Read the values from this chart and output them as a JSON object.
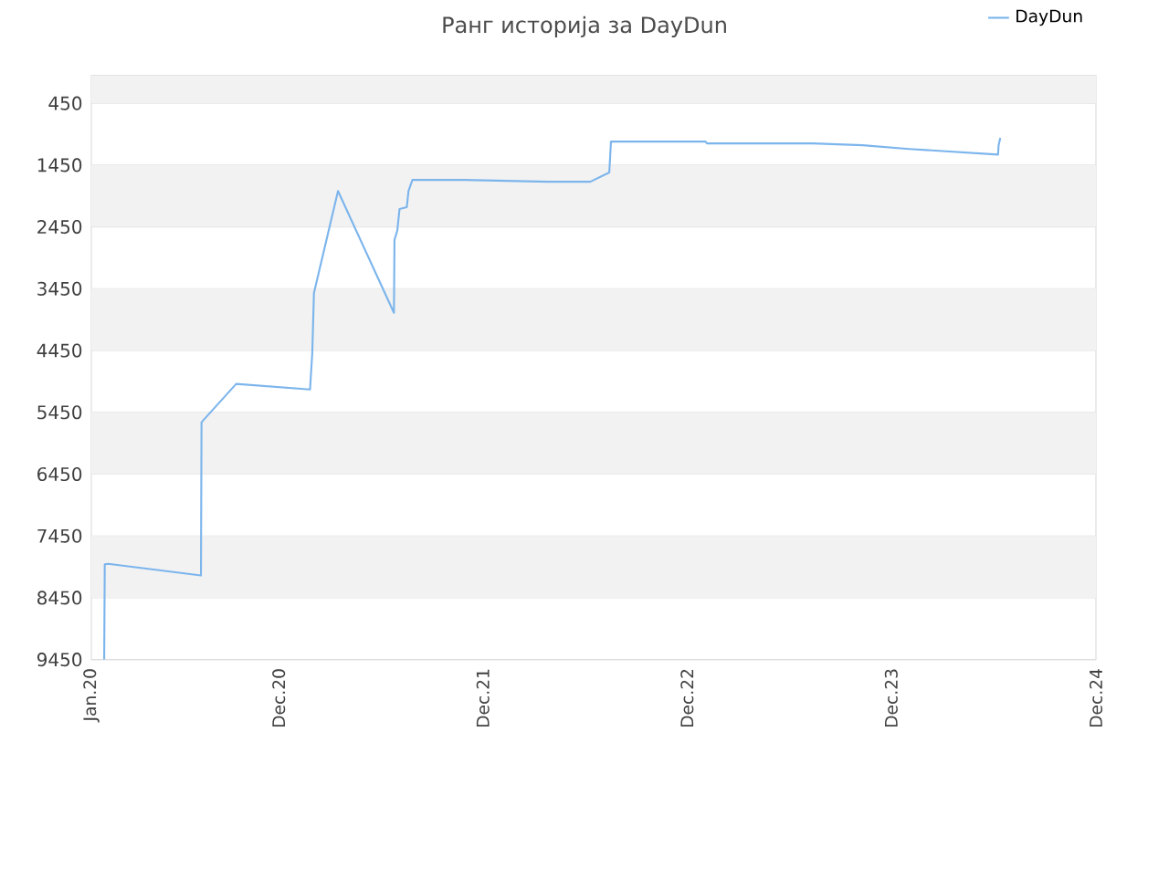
{
  "chart_data": {
    "type": "line",
    "title": "Ранг историја за DayDun",
    "x": [
      "2020-01-24",
      "2020-01-25",
      "2020-01-31",
      "2020-07-15",
      "2020-07-16",
      "2020-09-16",
      "2021-01-26",
      "2021-01-30",
      "2021-02-02",
      "2021-03-17",
      "2021-06-25",
      "2021-06-26",
      "2021-07-01",
      "2021-07-05",
      "2021-07-18",
      "2021-07-21",
      "2021-07-28",
      "2021-10-29",
      "2022-03-27",
      "2022-06-11",
      "2022-07-15",
      "2022-07-18",
      "2023-01-03",
      "2023-01-06",
      "2023-07-14",
      "2023-10-11",
      "2024-01-02",
      "2024-06-09",
      "2024-06-10",
      "2024-06-13"
    ],
    "series": [
      {
        "name": "DayDun",
        "color": "#7cb5ec",
        "values": [
          9450,
          7910,
          7900,
          8090,
          5610,
          4990,
          5080,
          4490,
          3520,
          1870,
          3840,
          2660,
          2510,
          2160,
          2130,
          1870,
          1690,
          1690,
          1720,
          1720,
          1570,
          1070,
          1070,
          1100,
          1100,
          1130,
          1190,
          1280,
          1130,
          1010
        ]
      }
    ],
    "xlim": [
      "2020-01-01",
      "2024-12-01"
    ],
    "xticks": [
      {
        "value": "2020-01-01",
        "label": "Jan.20"
      },
      {
        "value": "2020-12-01",
        "label": "Dec.20"
      },
      {
        "value": "2021-12-01",
        "label": "Dec.21"
      },
      {
        "value": "2022-12-01",
        "label": "Dec.22"
      },
      {
        "value": "2023-12-01",
        "label": "Dec.23"
      },
      {
        "value": "2024-12-01",
        "label": "Dec.24"
      }
    ],
    "ylim": [
      9450,
      0
    ],
    "yticks": [
      450,
      1450,
      2450,
      3450,
      4450,
      5450,
      6450,
      7450,
      8450,
      9450
    ],
    "bands": [
      {
        "axis": "y",
        "from": 0,
        "to": 450,
        "color": "#f2f2f2"
      },
      {
        "axis": "y",
        "from": 1450,
        "to": 2450,
        "color": "#f2f2f2"
      },
      {
        "axis": "y",
        "from": 3450,
        "to": 4450,
        "color": "#f2f2f2"
      },
      {
        "axis": "y",
        "from": 5450,
        "to": 6450,
        "color": "#f2f2f2"
      },
      {
        "axis": "y",
        "from": 7450,
        "to": 8450,
        "color": "#f2f2f2"
      }
    ],
    "grid": "y",
    "legend": "top right",
    "marker": "none",
    "line_style": "solid"
  }
}
